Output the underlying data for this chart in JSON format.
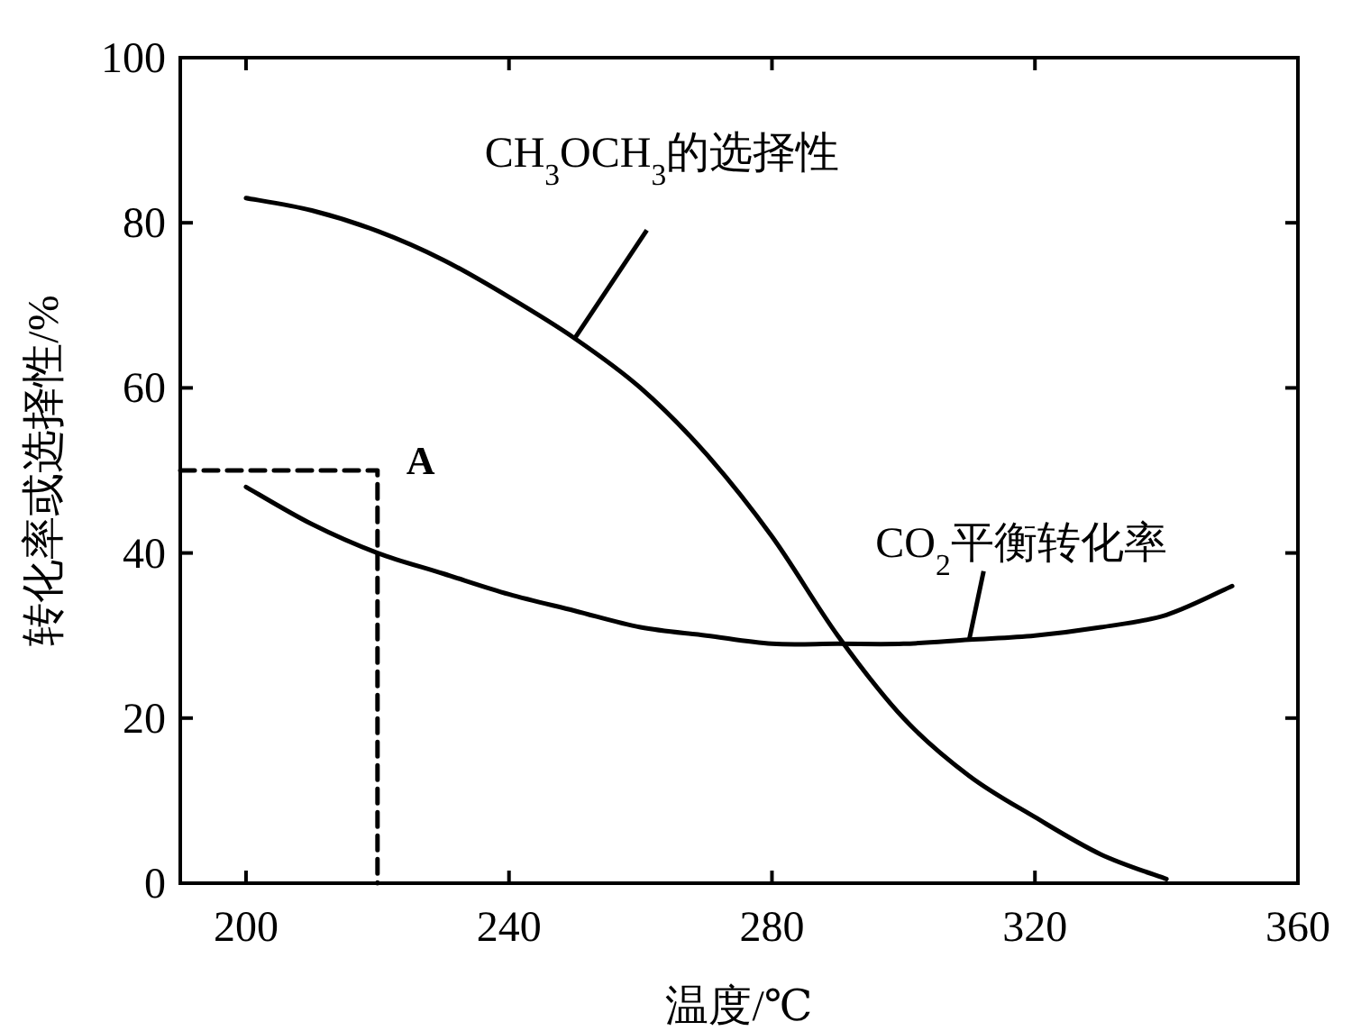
{
  "chart_data": {
    "type": "line",
    "xlabel": "温度/℃",
    "ylabel": "转化率或选择性/%",
    "xlim": [
      190,
      360
    ],
    "ylim": [
      0,
      100
    ],
    "xticks": [
      200,
      240,
      280,
      320,
      360
    ],
    "yticks": [
      0,
      20,
      40,
      60,
      80,
      100
    ],
    "marker": "none",
    "line_style": "solid",
    "grid": false,
    "series": [
      {
        "name": "CH$_{3}$OCH$_{3}$的选择性",
        "color": "#000000",
        "x": [
          200,
          210,
          220,
          230,
          240,
          250,
          260,
          270,
          280,
          290,
          300,
          310,
          320,
          330,
          340
        ],
        "values": [
          83,
          81.5,
          79,
          75.5,
          71,
          66,
          60,
          52,
          42,
          30,
          20,
          13,
          8,
          3.5,
          0.5
        ]
      },
      {
        "name": "CO$_{2}$平衡转化率",
        "color": "#000000",
        "x": [
          200,
          210,
          220,
          230,
          240,
          250,
          260,
          270,
          280,
          290,
          300,
          310,
          320,
          330,
          340,
          350
        ],
        "values": [
          48,
          43.5,
          40,
          37.5,
          35,
          33,
          31,
          30,
          29,
          29,
          29,
          29.5,
          30,
          31,
          32.5,
          36
        ]
      },
      {
        "color": "#000000",
        "line_style": "dashed",
        "x": [
          190,
          220,
          220
        ],
        "values": [
          50,
          50,
          0
        ]
      }
    ],
    "annotations": [
      {
        "text": "A",
        "x": 220,
        "y": 50
      }
    ]
  }
}
